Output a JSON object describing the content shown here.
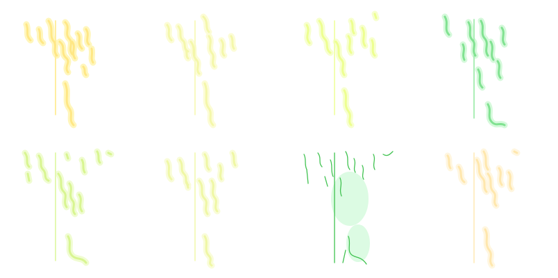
{
  "sheet": {
    "background": "#ffffff",
    "tiles": [
      {
        "id": "tile-1",
        "stroke": "#ffe680",
        "glow": "#fff3a6",
        "style": "glow"
      },
      {
        "id": "tile-2",
        "stroke": "#f4f7a6",
        "glow": "#fbfcc9",
        "style": "glow"
      },
      {
        "id": "tile-3",
        "stroke": "#ecff8a",
        "glow": "#f5ffbf",
        "style": "glow"
      },
      {
        "id": "tile-4",
        "stroke": "#78e08a",
        "glow": "#c8f7cf",
        "style": "glow"
      },
      {
        "id": "tile-5",
        "stroke": "#d6f58a",
        "glow": "#ecfbc4",
        "style": "glow"
      },
      {
        "id": "tile-6",
        "stroke": "#eef7a0",
        "glow": "#f8fccd",
        "style": "glow"
      },
      {
        "id": "tile-7",
        "stroke": "#3fc24f",
        "glow": "#d9fbe0",
        "style": "thin"
      },
      {
        "id": "tile-8",
        "stroke": "#ffe6a8",
        "glow": "#fff4d6",
        "style": "glow"
      }
    ]
  }
}
